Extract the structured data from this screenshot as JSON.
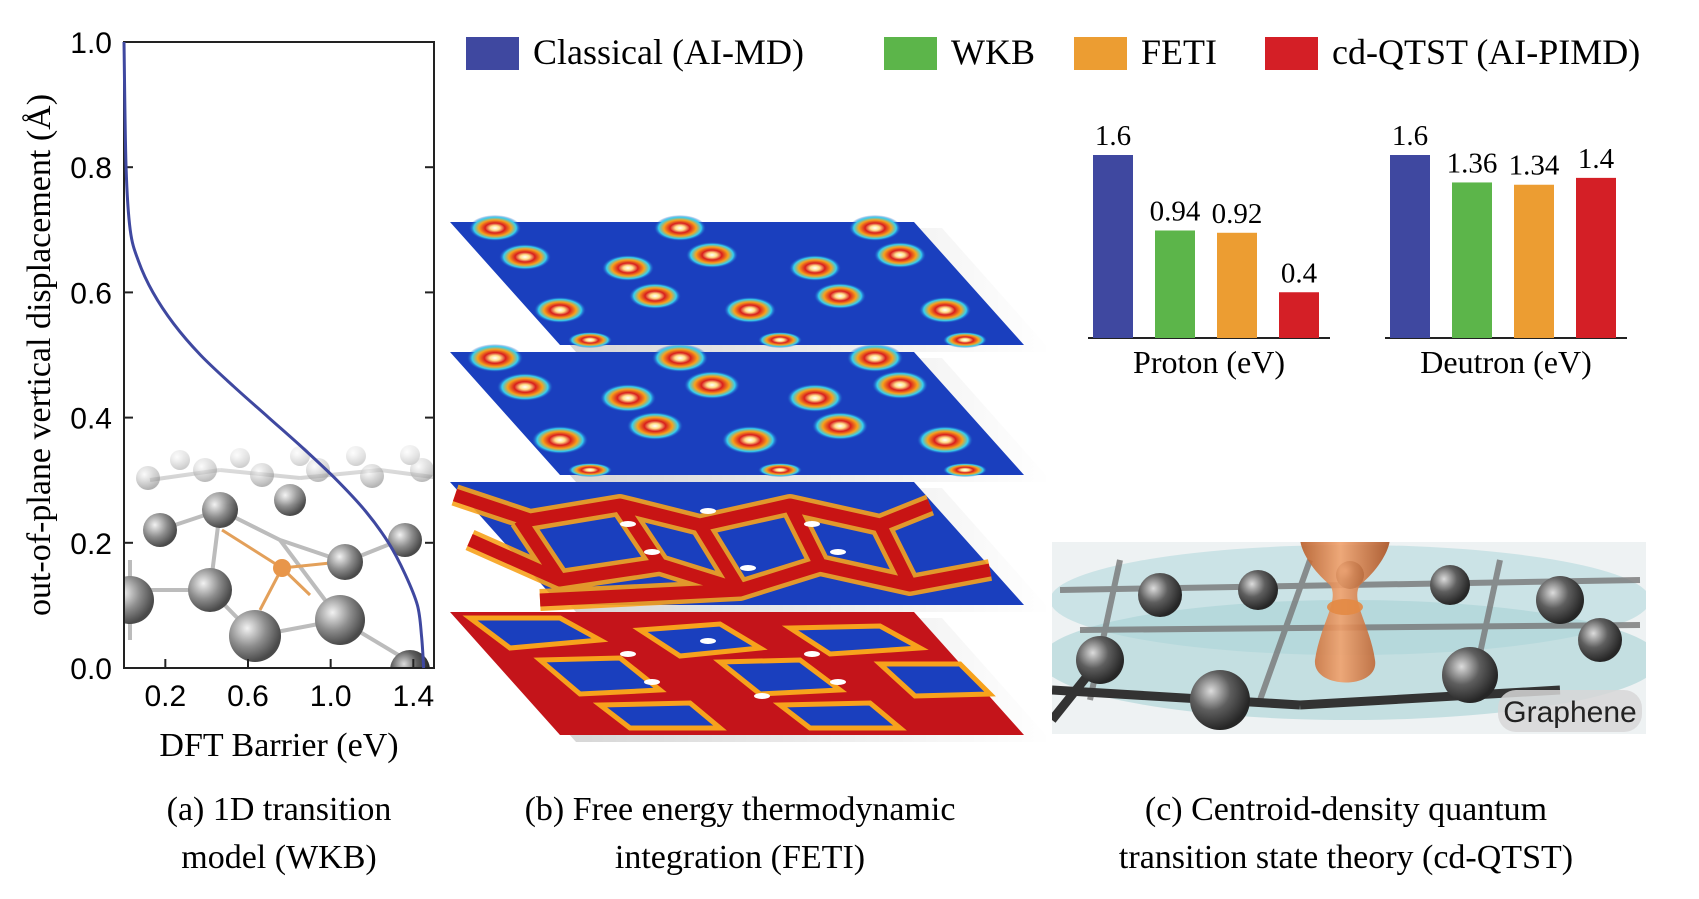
{
  "legend": {
    "items": [
      {
        "label": "Classical (AI-MD)",
        "color": "#3f48a0"
      },
      {
        "label": "WKB",
        "color": "#5cb54a"
      },
      {
        "label": "FETI",
        "color": "#ec9d32"
      },
      {
        "label": "cd-QTST (AI-PIMD)",
        "color": "#d41f26"
      }
    ]
  },
  "captions": {
    "a_line1": "(a) 1D transition",
    "a_line2": "model (WKB)",
    "b_line1": "(b) Free energy thermodynamic",
    "b_line2": "integration (FETI)",
    "c_line1": "(c) Centroid-density quantum",
    "c_line2": "transition state theory (cd-QTST)"
  },
  "graphene_label": "Graphene",
  "chart_data": [
    {
      "type": "line",
      "panel": "a",
      "xlabel": "DFT Barrier (eV)",
      "ylabel": "out-of-plane vertical displacement (Å)",
      "xlim": [
        0,
        1.5
      ],
      "ylim": [
        0,
        1.0
      ],
      "xticks": [
        0.2,
        0.6,
        1.0,
        1.4
      ],
      "xtick_labels": [
        "0.2",
        "0.6",
        "1.0",
        "1.4"
      ],
      "yticks": [
        0.0,
        0.2,
        0.4,
        0.6,
        0.8,
        1.0
      ],
      "ytick_labels": [
        "0.0",
        "0.2",
        "0.4",
        "0.6",
        "0.8",
        "1.0"
      ],
      "line_color": "#3f48a0",
      "x": [
        1.45,
        1.44,
        1.42,
        1.36,
        1.28,
        1.17,
        1.03,
        0.87,
        0.7,
        0.53,
        0.37,
        0.24,
        0.14,
        0.07,
        0.03,
        0.01,
        0.0
      ],
      "y": [
        0.0,
        0.05,
        0.1,
        0.15,
        0.2,
        0.25,
        0.3,
        0.35,
        0.4,
        0.45,
        0.5,
        0.55,
        0.6,
        0.65,
        0.7,
        0.8,
        1.0
      ]
    },
    {
      "type": "bar",
      "panel": "c",
      "xlabel": "Proton (eV)",
      "categories": [
        "Classical (AI-MD)",
        "WKB",
        "FETI",
        "cd-QTST (AI-PIMD)"
      ],
      "values": [
        1.6,
        0.94,
        0.92,
        0.4
      ],
      "value_labels": [
        "1.6",
        "0.94",
        "0.92",
        "0.4"
      ],
      "colors": [
        "#3f48a0",
        "#5cb54a",
        "#ec9d32",
        "#d41f26"
      ],
      "ylim": [
        0,
        1.8
      ]
    },
    {
      "type": "bar",
      "panel": "c",
      "xlabel": "Deutron (eV)",
      "categories": [
        "Classical (AI-MD)",
        "WKB",
        "FETI",
        "cd-QTST (AI-PIMD)"
      ],
      "values": [
        1.6,
        1.36,
        1.34,
        1.4
      ],
      "value_labels": [
        "1.6",
        "1.36",
        "1.34",
        "1.4"
      ],
      "colors": [
        "#3f48a0",
        "#5cb54a",
        "#ec9d32",
        "#d41f26"
      ],
      "ylim": [
        0,
        1.8
      ]
    }
  ]
}
